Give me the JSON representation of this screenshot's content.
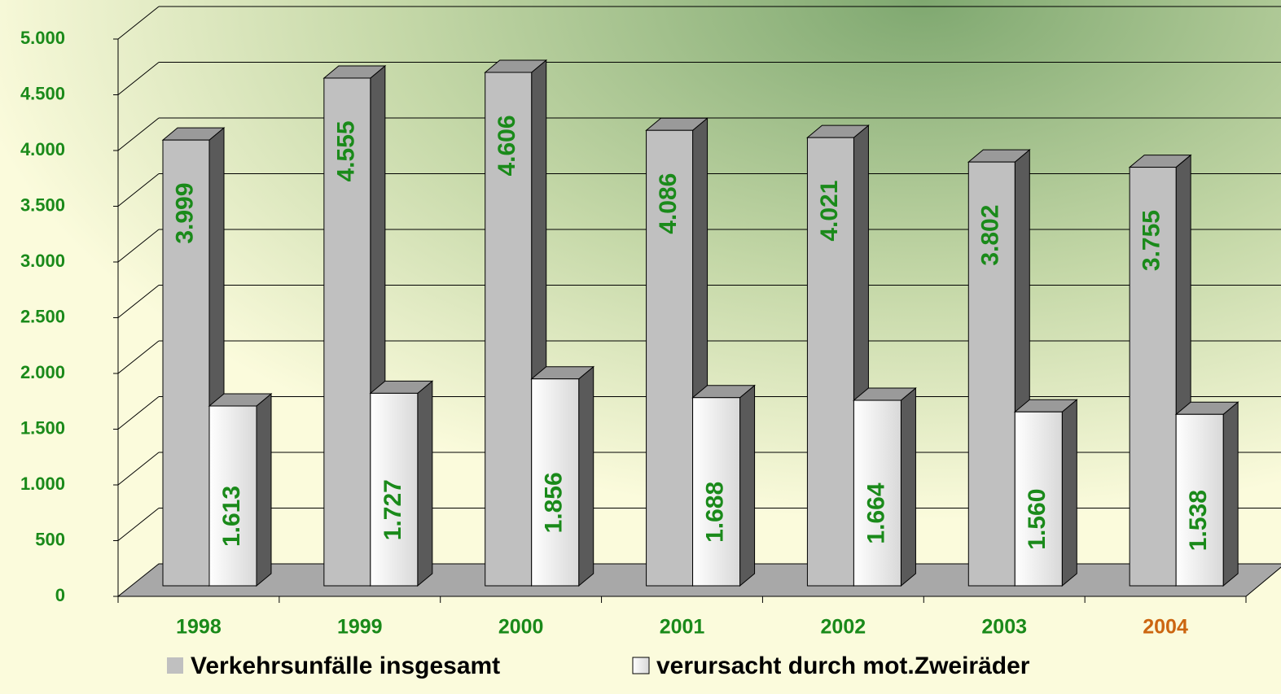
{
  "chart_data": {
    "type": "bar3d",
    "categories": [
      "1998",
      "1999",
      "2000",
      "2001",
      "2002",
      "2003",
      "2004"
    ],
    "category_colors": [
      "#1a8a1a",
      "#1a8a1a",
      "#1a8a1a",
      "#1a8a1a",
      "#1a8a1a",
      "#1a8a1a",
      "#cc6611"
    ],
    "series": [
      {
        "name": "Verkehrsunfälle insgesamt",
        "color": "#c0c0c0",
        "values": [
          3999,
          4555,
          4606,
          4086,
          4021,
          3802,
          3755
        ],
        "value_labels": [
          "3.999",
          "4.555",
          "4.606",
          "4.086",
          "4.021",
          "3.802",
          "3.755"
        ]
      },
      {
        "name": "verursacht durch mot.Zweiräder",
        "color": "#f2f2f2",
        "values": [
          1613,
          1727,
          1856,
          1688,
          1664,
          1560,
          1538
        ],
        "value_labels": [
          "1.613",
          "1.727",
          "1.856",
          "1.688",
          "1.664",
          "1.560",
          "1.538"
        ]
      }
    ],
    "ylim": [
      0,
      5000
    ],
    "yticks": [
      0,
      500,
      {
        "value": 1000,
        "label": "1.000"
      },
      {
        "value": 1500,
        "label": "1.500"
      },
      {
        "value": 2000,
        "label": "2.000"
      },
      {
        "value": 2500,
        "label": "2.500"
      },
      {
        "value": 3000,
        "label": "3.000"
      },
      {
        "value": 3500,
        "label": "3.500"
      },
      {
        "value": 4000,
        "label": "4.000"
      },
      {
        "value": 4500,
        "label": "4.500"
      },
      {
        "value": 5000,
        "label": "5.000"
      }
    ],
    "grid": true
  }
}
